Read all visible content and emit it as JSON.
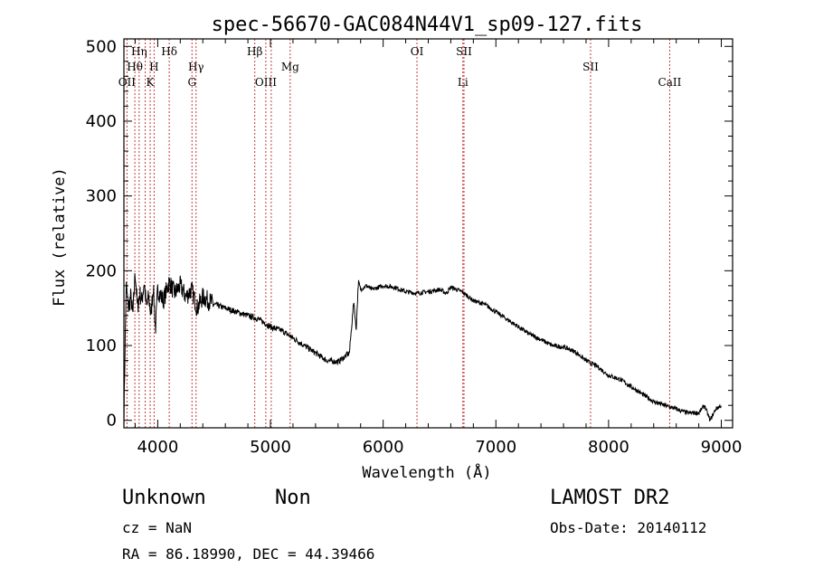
{
  "chart_data": {
    "type": "line",
    "title": "spec-56670-GAC084N44V1_sp09-127.fits",
    "xlabel": "Wavelength (Å)",
    "ylabel": "Flux (relative)",
    "xlim": [
      3700,
      9100
    ],
    "ylim": [
      -10,
      510
    ],
    "xticks": [
      4000,
      5000,
      6000,
      7000,
      8000,
      9000
    ],
    "yticks": [
      0,
      100,
      200,
      300,
      400,
      500
    ],
    "grid": false,
    "series": [
      {
        "color": "#000000",
        "x": [
          3700,
          3720,
          3740,
          3760,
          3780,
          3800,
          3820,
          3840,
          3860,
          3880,
          3900,
          3920,
          3940,
          3960,
          3980,
          4000,
          4050,
          4100,
          4150,
          4200,
          4250,
          4300,
          4350,
          4400,
          4450,
          4500,
          4600,
          4700,
          4800,
          4900,
          5000,
          5100,
          5200,
          5300,
          5400,
          5500,
          5600,
          5700,
          5740,
          5760,
          5780,
          5800,
          5850,
          5900,
          6000,
          6100,
          6200,
          6300,
          6400,
          6500,
          6560,
          6600,
          6700,
          6800,
          6900,
          7000,
          7100,
          7200,
          7300,
          7400,
          7500,
          7600,
          7700,
          7800,
          7900,
          8000,
          8100,
          8200,
          8300,
          8400,
          8500,
          8600,
          8700,
          8800,
          8850,
          8900,
          8950,
          9000
        ],
        "y": [
          5,
          180,
          150,
          165,
          140,
          200,
          150,
          170,
          160,
          185,
          150,
          165,
          140,
          180,
          120,
          175,
          160,
          185,
          170,
          180,
          165,
          175,
          150,
          165,
          160,
          155,
          150,
          145,
          140,
          135,
          125,
          120,
          110,
          100,
          90,
          80,
          78,
          90,
          160,
          120,
          185,
          175,
          180,
          175,
          180,
          178,
          172,
          170,
          172,
          175,
          170,
          178,
          172,
          160,
          155,
          145,
          135,
          125,
          115,
          108,
          100,
          98,
          92,
          80,
          72,
          60,
          55,
          45,
          35,
          25,
          20,
          15,
          10,
          10,
          20,
          0,
          15,
          20
        ]
      }
    ],
    "line_markers": [
      {
        "label": "Hη",
        "x": 3835,
        "row": 0
      },
      {
        "label": "Hδ",
        "x": 4102,
        "row": 0
      },
      {
        "label": "Hβ",
        "x": 4861,
        "row": 0
      },
      {
        "label": "OI",
        "x": 6300,
        "row": 0
      },
      {
        "label": "SII",
        "x": 6717,
        "row": 0
      },
      {
        "label": "Hθ",
        "x": 3797,
        "row": 1
      },
      {
        "label": "H",
        "x": 3968,
        "row": 1
      },
      {
        "label": "Hγ",
        "x": 4340,
        "row": 1
      },
      {
        "label": "Mg",
        "x": 5175,
        "row": 1
      },
      {
        "label": "SII",
        "x": 7840,
        "row": 1
      },
      {
        "label": "OII",
        "x": 3727,
        "row": 2
      },
      {
        "label": "K",
        "x": 3933,
        "row": 2
      },
      {
        "label": "G",
        "x": 4304,
        "row": 2
      },
      {
        "label": "OIII",
        "x": 4959,
        "row": 2
      },
      {
        "label": "Li",
        "x": 6707,
        "row": 2
      },
      {
        "label": "CaII",
        "x": 8542,
        "row": 2
      }
    ],
    "extra_marker_lines": [
      3889,
      5007
    ]
  },
  "footer": {
    "object_class": "Unknown",
    "subclass": "Non",
    "redshift": "cz = NaN",
    "coords": "RA =  86.18990, DEC =  44.39466",
    "survey": "LAMOST DR2",
    "obs_date": "Obs-Date: 20140112"
  }
}
